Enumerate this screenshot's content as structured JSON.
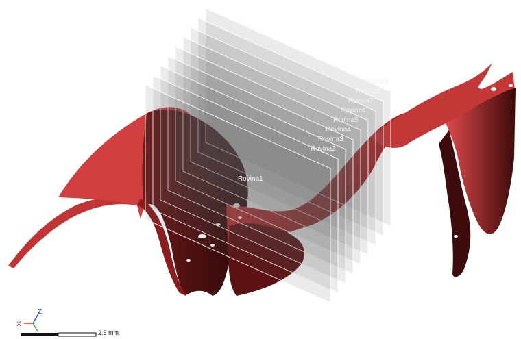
{
  "viewport": {
    "planes": [
      {
        "label": "Rovina9"
      },
      {
        "label": "Rovina8"
      },
      {
        "label": "Rovina7"
      },
      {
        "label": "Rovina6"
      },
      {
        "label": "Rovina5"
      },
      {
        "label": "Rovina4"
      },
      {
        "label": "Rovina3"
      },
      {
        "label": "Rovina2"
      },
      {
        "label": "Rovina1"
      }
    ],
    "surface_color": "#c93a3a",
    "plane_color": "#5a5a5a"
  },
  "triad": {
    "x_label": "X",
    "z_label": "Z",
    "colors": {
      "x": "#e03030",
      "y": "#30b030",
      "z": "#3050e0"
    }
  },
  "scale_bar": {
    "label": "2.5 mm"
  }
}
